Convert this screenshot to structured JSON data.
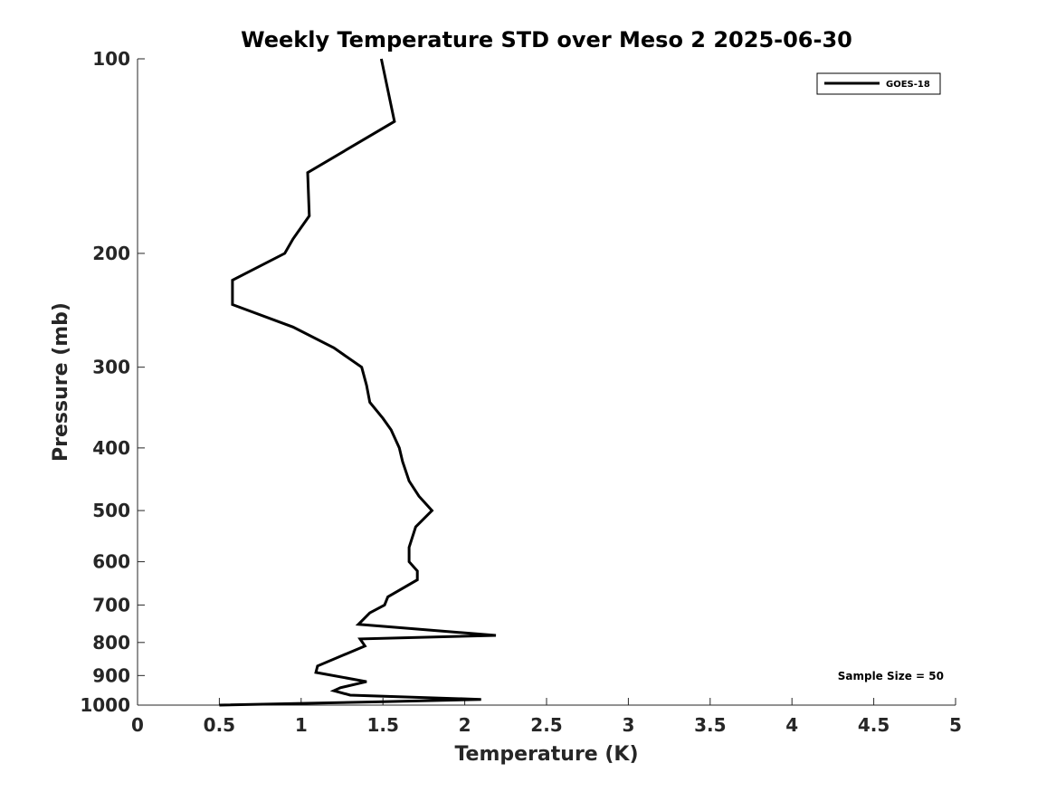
{
  "chart_data": {
    "type": "line",
    "title": "Weekly Temperature STD over Meso 2 2025-06-30",
    "xlabel": "Temperature (K)",
    "ylabel": "Pressure (mb)",
    "xlim": [
      0,
      5
    ],
    "ylim": [
      100,
      1000
    ],
    "yscale": "log",
    "y_reversed": true,
    "xticks": [
      0,
      0.5,
      1,
      1.5,
      2,
      2.5,
      3,
      3.5,
      4,
      4.5,
      5
    ],
    "xtick_labels": [
      "0",
      "0.5",
      "1",
      "1.5",
      "2",
      "2.5",
      "3",
      "3.5",
      "4",
      "4.5",
      "5"
    ],
    "yticks": [
      100,
      200,
      300,
      400,
      500,
      600,
      700,
      800,
      900,
      1000
    ],
    "ytick_labels": [
      "100",
      "200",
      "300",
      "400",
      "500",
      "600",
      "700",
      "800",
      "900",
      "1000"
    ],
    "legend_position": "top-right",
    "annotation": "Sample Size = 50",
    "series": [
      {
        "name": "GOES-18",
        "color": "#000000",
        "points": [
          [
            1.49,
            100
          ],
          [
            1.57,
            125
          ],
          [
            1.04,
            150
          ],
          [
            1.05,
            175
          ],
          [
            0.95,
            190
          ],
          [
            0.9,
            200
          ],
          [
            0.58,
            220
          ],
          [
            0.58,
            240
          ],
          [
            0.95,
            260
          ],
          [
            1.2,
            280
          ],
          [
            1.37,
            300
          ],
          [
            1.4,
            320
          ],
          [
            1.42,
            340
          ],
          [
            1.5,
            360
          ],
          [
            1.55,
            375
          ],
          [
            1.6,
            400
          ],
          [
            1.62,
            420
          ],
          [
            1.66,
            450
          ],
          [
            1.72,
            475
          ],
          [
            1.8,
            500
          ],
          [
            1.7,
            530
          ],
          [
            1.66,
            570
          ],
          [
            1.66,
            600
          ],
          [
            1.71,
            620
          ],
          [
            1.71,
            640
          ],
          [
            1.53,
            680
          ],
          [
            1.51,
            700
          ],
          [
            1.42,
            720
          ],
          [
            1.35,
            750
          ],
          [
            2.19,
            780
          ],
          [
            1.36,
            790
          ],
          [
            1.39,
            810
          ],
          [
            1.1,
            870
          ],
          [
            1.09,
            890
          ],
          [
            1.4,
            920
          ],
          [
            1.24,
            940
          ],
          [
            1.2,
            950
          ],
          [
            1.3,
            965
          ],
          [
            2.1,
            980
          ],
          [
            1.5,
            988
          ],
          [
            0.5,
            1000
          ]
        ]
      }
    ]
  }
}
